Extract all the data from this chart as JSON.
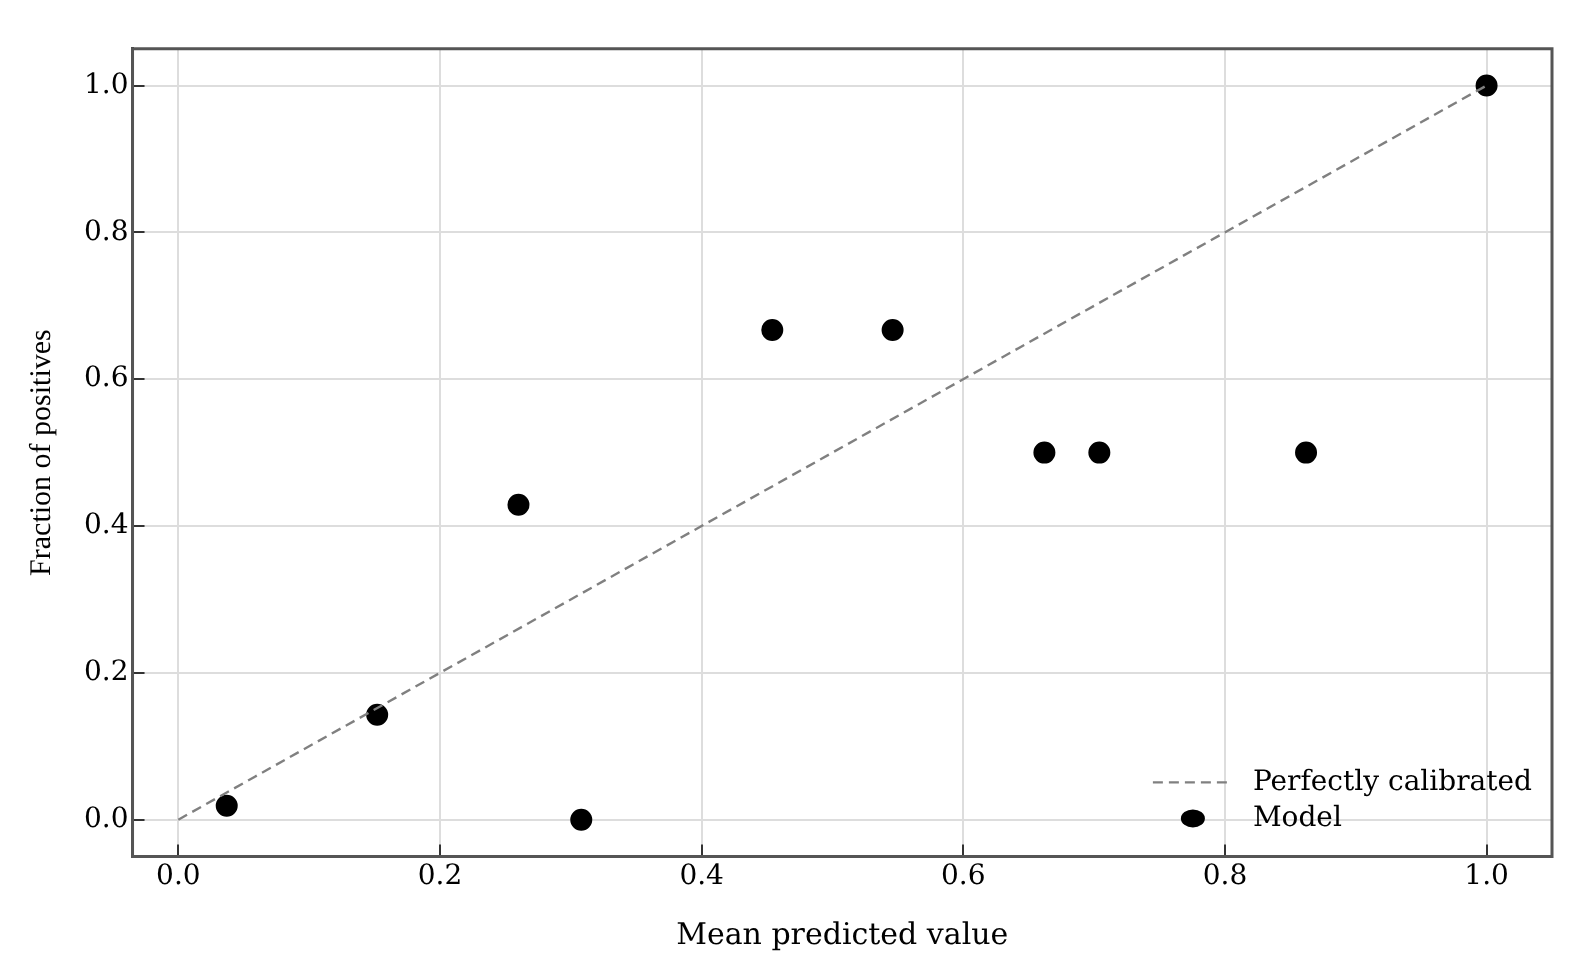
{
  "chart_data": {
    "type": "scatter",
    "xlabel": "Mean predicted value",
    "ylabel": "Fraction of positives",
    "xlim": [
      -0.035,
      1.05
    ],
    "ylim": [
      -0.05,
      1.05
    ],
    "xticks": [
      {
        "value": 0,
        "label": "0.0"
      },
      0.2,
      0.4,
      0.6,
      0.8,
      {
        "value": 1,
        "label": "1.0"
      }
    ],
    "yticks": [
      {
        "value": 0,
        "label": "0.0"
      },
      0.2,
      0.4,
      0.6,
      0.8,
      {
        "value": 1,
        "label": "1.0"
      }
    ],
    "grid": true,
    "legend": "bottom right",
    "series": [
      {
        "name": "Perfectly calibrated",
        "type": "line",
        "color": "#808080",
        "line_style": "dashed",
        "marker": "none",
        "x": [
          0,
          1
        ],
        "values": [
          0,
          1
        ]
      },
      {
        "name": "Model",
        "color": "#000000",
        "marker": "circle",
        "x": [
          0.037,
          0.152,
          0.26,
          0.308,
          0.454,
          0.546,
          0.662,
          0.704,
          0.862,
          1.0
        ],
        "values": [
          0.019,
          0.143,
          0.429,
          0.0,
          0.667,
          0.667,
          0.5,
          0.5,
          0.5,
          1.0
        ]
      }
    ]
  }
}
